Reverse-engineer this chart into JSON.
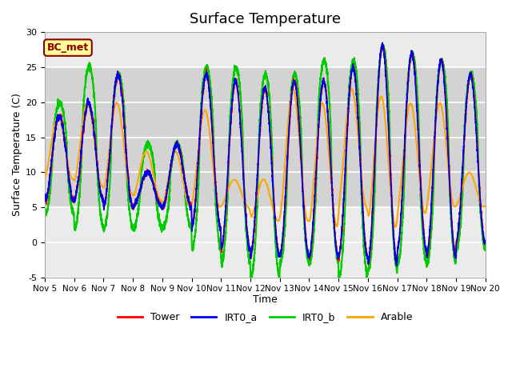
{
  "title": "Surface Temperature",
  "xlabel": "Time",
  "ylabel": "Surface Temperature (C)",
  "ylim": [
    -5,
    30
  ],
  "annotation_text": "BC_met",
  "annotation_bg": "#FFFF99",
  "annotation_border": "#8B0000",
  "plot_bg": "#EBEBEB",
  "band_low": 5,
  "band_high": 25,
  "band_color": "#D3D3D3",
  "series_colors": {
    "Tower": "#FF0000",
    "IRT0_a": "#0000EE",
    "IRT0_b": "#00CC00",
    "Arable": "#FFA500"
  },
  "series_lw": {
    "Tower": 1.2,
    "IRT0_a": 1.2,
    "IRT0_b": 1.5,
    "Arable": 1.5
  },
  "xtick_labels": [
    "Nov 5",
    "Nov 6",
    "Nov 7",
    "Nov 8",
    "Nov 9",
    "Nov 10",
    "Nov 11",
    "Nov 12",
    "Nov 13",
    "Nov 14",
    "Nov 15",
    "Nov 16",
    "Nov 17",
    "Nov 18",
    "Nov 19",
    "Nov 20"
  ],
  "ytick_vals": [
    -5,
    0,
    5,
    10,
    15,
    20,
    25,
    30
  ],
  "legend_labels": [
    "Tower",
    "IRT0_a",
    "IRT0_b",
    "Arable"
  ],
  "legend_colors": [
    "#FF0000",
    "#0000EE",
    "#00CC00",
    "#FFA500"
  ],
  "day_peaks_rb": [
    18,
    20,
    24,
    10,
    14,
    24,
    23,
    22,
    23,
    23,
    25,
    28,
    27,
    26,
    24
  ],
  "day_mins_rb": [
    6,
    6,
    5,
    5,
    5,
    2,
    -1,
    -2,
    -2,
    -2,
    -2,
    -3,
    -1,
    -2,
    0
  ],
  "day_peaks_g": [
    20,
    25,
    24,
    14,
    14,
    25,
    25,
    24,
    24,
    26,
    26,
    28,
    27,
    26,
    24
  ],
  "day_mins_g": [
    4,
    2,
    2,
    2,
    2,
    -1,
    -3,
    -5,
    -3,
    -3,
    -5,
    -4,
    -3,
    -3,
    -1
  ],
  "day_peaks_o": [
    18,
    20,
    20,
    13,
    13,
    19,
    9,
    9,
    22,
    20,
    22,
    21,
    20,
    20,
    10
  ],
  "day_mins_o": [
    9,
    8,
    7,
    6,
    5,
    5,
    5,
    3,
    3,
    2,
    5,
    2,
    4,
    5,
    5
  ]
}
